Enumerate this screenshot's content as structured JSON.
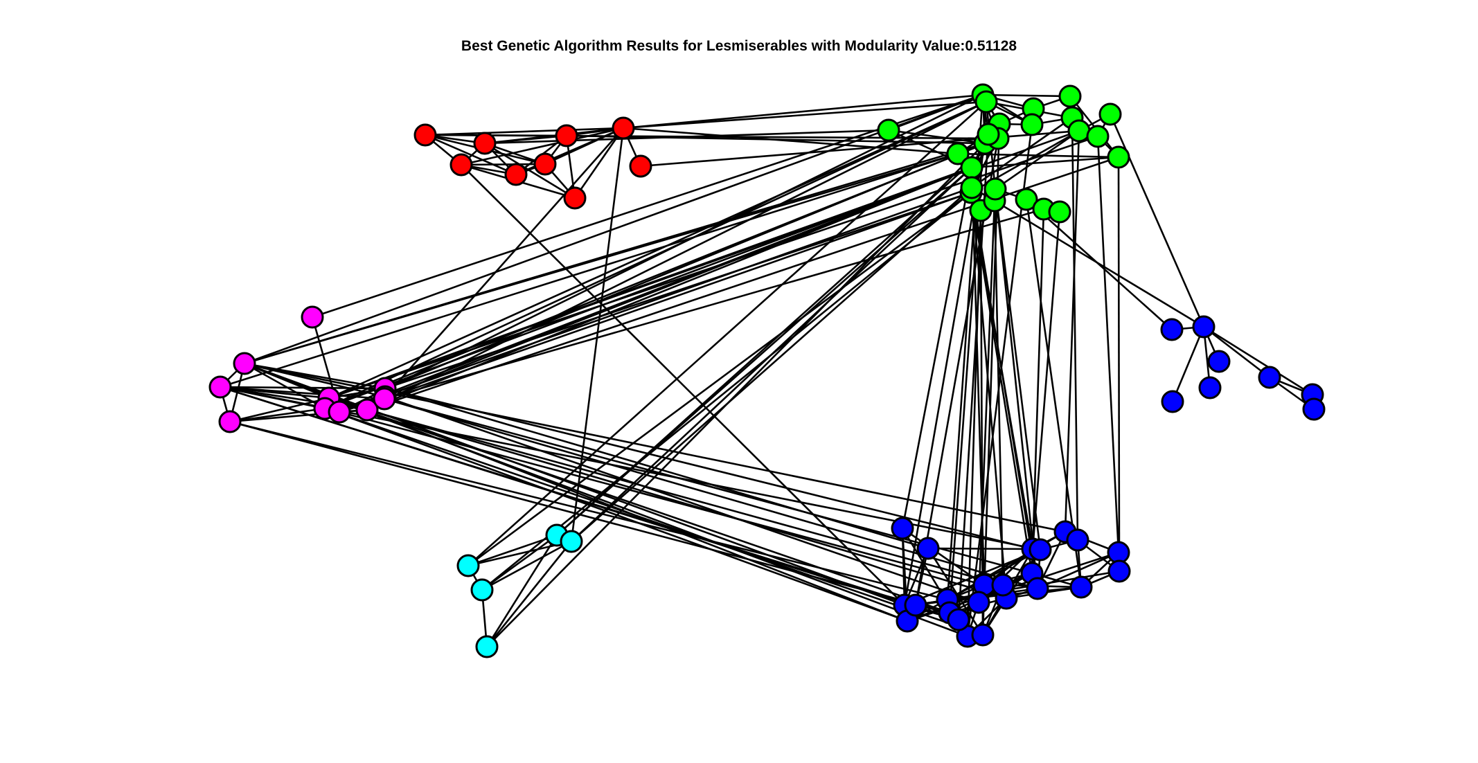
{
  "chart_data": {
    "type": "network",
    "title": "Best Genetic Algorithm Results for Lesmiserables with Modularity Value:0.51128",
    "groups": [
      {
        "name": "red",
        "color": "#ff0000"
      },
      {
        "name": "green",
        "color": "#00ff00"
      },
      {
        "name": "magenta",
        "color": "#ff00ff"
      },
      {
        "name": "cyan",
        "color": "#00ffff"
      },
      {
        "name": "blue",
        "color": "#0000ff"
      }
    ],
    "node_count": 77
  }
}
